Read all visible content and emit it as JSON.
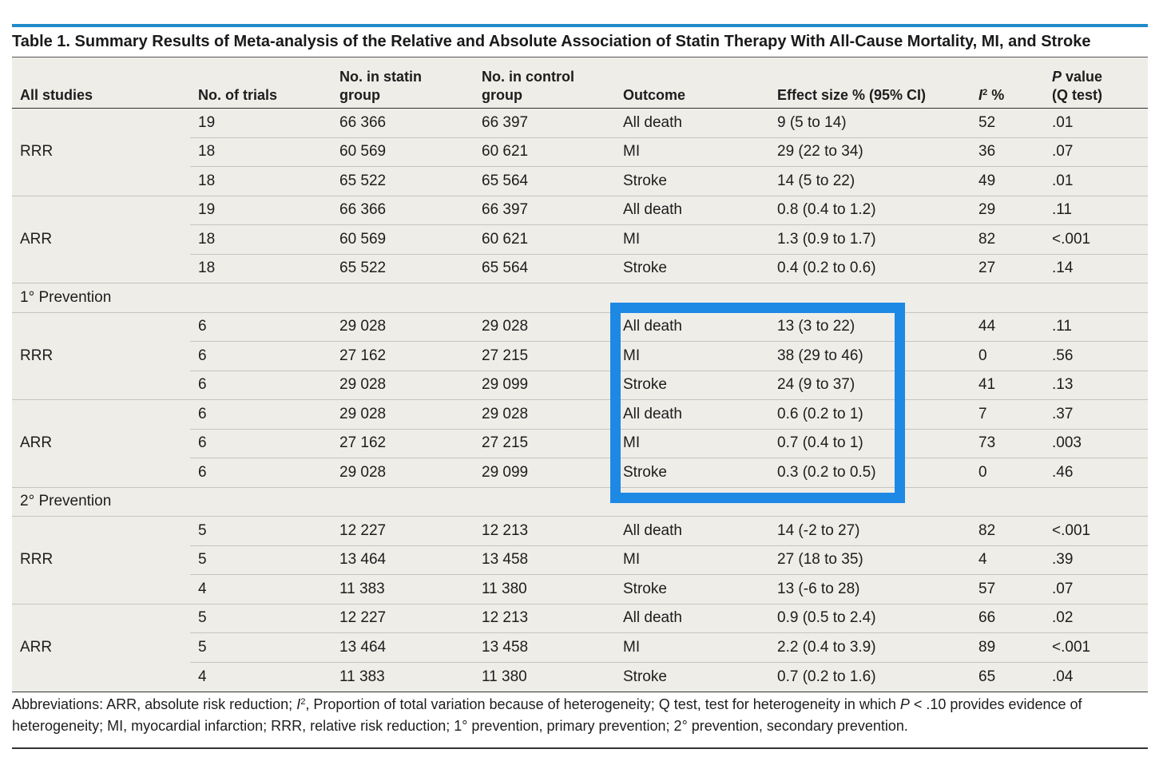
{
  "colors": {
    "top_rule": "#1f8bc9",
    "highlight_box": "#1e88e5",
    "table_background": "#eeede8"
  },
  "title": "Table 1. Summary Results of Meta-analysis of the Relative and Absolute Association of Statin Therapy With All-Cause Mortality, MI, and Stroke",
  "columns": {
    "group": "All studies",
    "trials": "No. of trials",
    "statin": {
      "line1": "No. in statin",
      "line2": "group"
    },
    "control": {
      "line1": "No. in control",
      "line2": "group"
    },
    "outcome": "Outcome",
    "effect": "Effect size % (95% CI)",
    "i2": {
      "symbol": "I",
      "superscript": "2",
      "suffix": " %"
    },
    "p": {
      "symbol": "P",
      "suffix": " value",
      "line2": "(Q test)"
    }
  },
  "sections": [
    {
      "groups": [
        {
          "measure": "RRR",
          "rows": [
            {
              "trials": "19",
              "statin": "66 366",
              "control": "66 397",
              "outcome": "All death",
              "effect": "9 (5 to 14)",
              "i2": "52",
              "p": ".01"
            },
            {
              "trials": "18",
              "statin": "60 569",
              "control": "60 621",
              "outcome": "MI",
              "effect": "29 (22 to 34)",
              "i2": "36",
              "p": ".07"
            },
            {
              "trials": "18",
              "statin": "65 522",
              "control": "65 564",
              "outcome": "Stroke",
              "effect": "14 (5 to 22)",
              "i2": "49",
              "p": ".01"
            }
          ]
        },
        {
          "measure": "ARR",
          "rows": [
            {
              "trials": "19",
              "statin": "66 366",
              "control": "66 397",
              "outcome": "All death",
              "effect": "0.8 (0.4 to 1.2)",
              "i2": "29",
              "p": ".11"
            },
            {
              "trials": "18",
              "statin": "60 569",
              "control": "60 621",
              "outcome": "MI",
              "effect": "1.3 (0.9 to 1.7)",
              "i2": "82",
              "p": "<.001"
            },
            {
              "trials": "18",
              "statin": "65 522",
              "control": "65 564",
              "outcome": "Stroke",
              "effect": "0.4 (0.2 to 0.6)",
              "i2": "27",
              "p": ".14"
            }
          ]
        }
      ]
    },
    {
      "label": "1° Prevention",
      "groups": [
        {
          "measure": "RRR",
          "rows": [
            {
              "trials": "6",
              "statin": "29 028",
              "control": "29 028",
              "outcome": "All death",
              "effect": "13 (3 to 22)",
              "i2": "44",
              "p": ".11"
            },
            {
              "trials": "6",
              "statin": "27 162",
              "control": "27 215",
              "outcome": "MI",
              "effect": "38 (29 to 46)",
              "i2": "0",
              "p": ".56"
            },
            {
              "trials": "6",
              "statin": "29 028",
              "control": "29 099",
              "outcome": "Stroke",
              "effect": "24 (9 to 37)",
              "i2": "41",
              "p": ".13"
            }
          ]
        },
        {
          "measure": "ARR",
          "rows": [
            {
              "trials": "6",
              "statin": "29 028",
              "control": "29 028",
              "outcome": "All death",
              "effect": "0.6 (0.2 to 1)",
              "i2": "7",
              "p": ".37"
            },
            {
              "trials": "6",
              "statin": "27 162",
              "control": "27 215",
              "outcome": "MI",
              "effect": "0.7 (0.4 to 1)",
              "i2": "73",
              "p": ".003"
            },
            {
              "trials": "6",
              "statin": "29 028",
              "control": "29 099",
              "outcome": "Stroke",
              "effect": "0.3 (0.2 to 0.5)",
              "i2": "0",
              "p": ".46"
            }
          ]
        }
      ]
    },
    {
      "label": "2° Prevention",
      "groups": [
        {
          "measure": "RRR",
          "rows": [
            {
              "trials": "5",
              "statin": "12 227",
              "control": "12 213",
              "outcome": "All death",
              "effect": "14 (-2 to 27)",
              "i2": "82",
              "p": "<.001"
            },
            {
              "trials": "5",
              "statin": "13 464",
              "control": "13 458",
              "outcome": "MI",
              "effect": "27 (18 to 35)",
              "i2": "4",
              "p": ".39"
            },
            {
              "trials": "4",
              "statin": "11 383",
              "control": "11 380",
              "outcome": "Stroke",
              "effect": "13 (-6 to 28)",
              "i2": "57",
              "p": ".07"
            }
          ]
        },
        {
          "measure": "ARR",
          "rows": [
            {
              "trials": "5",
              "statin": "12 227",
              "control": "12 213",
              "outcome": "All death",
              "effect": "0.9 (0.5 to 2.4)",
              "i2": "66",
              "p": ".02"
            },
            {
              "trials": "5",
              "statin": "13 464",
              "control": "13 458",
              "outcome": "MI",
              "effect": "2.2 (0.4 to 3.9)",
              "i2": "89",
              "p": "<.001"
            },
            {
              "trials": "4",
              "statin": "11 383",
              "control": "11 380",
              "outcome": "Stroke",
              "effect": "0.7 (0.2 to 1.6)",
              "i2": "65",
              "p": ".04"
            }
          ]
        }
      ]
    }
  ],
  "footnote": {
    "text_1": "Abbreviations: ARR, absolute risk reduction; ",
    "i_symbol": "I",
    "i_superscript": "2",
    "text_2": ", Proportion of total variation because of heterogeneity; Q test, test for heterogeneity in which ",
    "p_symbol": "P",
    "text_3": " < .10 provides evidence of heterogeneity; MI, myocardial infarction; RRR, relative risk reduction; 1° prevention, primary prevention; 2° prevention, secondary prevention."
  }
}
